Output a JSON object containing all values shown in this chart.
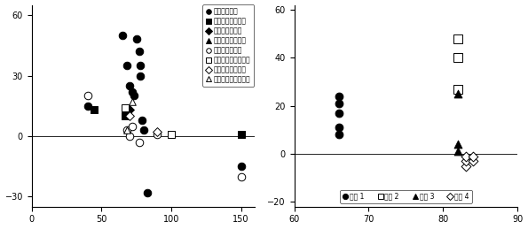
{
  "left_plot": {
    "xlim": [
      0,
      160
    ],
    "ylim": [
      -35,
      65
    ],
    "xticks": [
      0,
      50,
      100,
      150
    ],
    "yticks": [
      -30,
      0,
      30,
      60
    ],
    "series": [
      {
        "key": "kuroboku_hata",
        "label": "黒ボク土・畑",
        "marker": "o",
        "fc": "black",
        "ec": "black",
        "size": 38,
        "points": [
          [
            40,
            15
          ],
          [
            65,
            50
          ],
          [
            68,
            35
          ],
          [
            70,
            25
          ],
          [
            72,
            22
          ],
          [
            73,
            20
          ],
          [
            75,
            48
          ],
          [
            77,
            42
          ],
          [
            78,
            35
          ],
          [
            78,
            30
          ],
          [
            79,
            8
          ],
          [
            80,
            3
          ],
          [
            83,
            -28
          ],
          [
            150,
            -15
          ]
        ]
      },
      {
        "key": "kuroboku_juen",
        "label": "黒ボク土・樹園地",
        "marker": "s",
        "fc": "black",
        "ec": "black",
        "size": 35,
        "points": [
          [
            45,
            13
          ],
          [
            67,
            10
          ],
          [
            150,
            1
          ]
        ]
      },
      {
        "key": "kuroboku_chaen",
        "label": "黒ボク土・茶園",
        "marker": "D",
        "fc": "black",
        "ec": "black",
        "size": 25,
        "points": [
          [
            70,
            13
          ]
        ]
      },
      {
        "key": "kuroboku_bokusochi",
        "label": "黒ボク土・採草地",
        "marker": "^",
        "fc": "black",
        "ec": "black",
        "size": 30,
        "points": []
      },
      {
        "key": "hikuroboku_hata",
        "label": "非黒ボク土・畑",
        "marker": "o",
        "fc": "white",
        "ec": "black",
        "size": 38,
        "points": [
          [
            40,
            20
          ],
          [
            68,
            3
          ],
          [
            70,
            0
          ],
          [
            72,
            5
          ],
          [
            77,
            -3
          ],
          [
            90,
            1
          ],
          [
            150,
            -20
          ]
        ]
      },
      {
        "key": "hikuroboku_juen",
        "label": "非黒ボク土・樹園地",
        "marker": "s",
        "fc": "white",
        "ec": "black",
        "size": 35,
        "points": [
          [
            67,
            14
          ],
          [
            100,
            1
          ]
        ]
      },
      {
        "key": "hikuroboku_chaen",
        "label": "非黒ボク土・茶園",
        "marker": "D",
        "fc": "white",
        "ec": "black",
        "size": 25,
        "points": [
          [
            70,
            10
          ],
          [
            90,
            2
          ]
        ]
      },
      {
        "key": "hikuroboku_bokusochi",
        "label": "非黒ボク土・採草地",
        "marker": "^",
        "fc": "white",
        "ec": "black",
        "size": 30,
        "points": [
          [
            68,
            3
          ],
          [
            72,
            17
          ]
        ]
      }
    ]
  },
  "right_plot": {
    "xlim": [
      60,
      90
    ],
    "ylim": [
      -22,
      62
    ],
    "xticks": [
      60,
      70,
      80,
      90
    ],
    "yticks": [
      -20,
      0,
      20,
      40,
      60
    ],
    "series": [
      {
        "key": "field1",
        "label": "圈場 1",
        "marker": "o",
        "fc": "black",
        "ec": "black",
        "size": 40,
        "points": [
          [
            66,
            8
          ],
          [
            66,
            11
          ],
          [
            66,
            17
          ],
          [
            66,
            21
          ],
          [
            66,
            24
          ]
        ]
      },
      {
        "key": "field2",
        "label": "圈場 2",
        "marker": "s",
        "fc": "white",
        "ec": "black",
        "size": 45,
        "points": [
          [
            82,
            27
          ],
          [
            82,
            40
          ],
          [
            82,
            48
          ]
        ]
      },
      {
        "key": "field3",
        "label": "圈場 3",
        "marker": "^",
        "fc": "black",
        "ec": "black",
        "size": 40,
        "points": [
          [
            82,
            1
          ],
          [
            82,
            4
          ],
          [
            82,
            25
          ]
        ]
      },
      {
        "key": "field4",
        "label": "圈場 4",
        "marker": "D",
        "fc": "white",
        "ec": "black",
        "size": 30,
        "points": [
          [
            83,
            -5
          ],
          [
            83,
            -3
          ],
          [
            83,
            -1
          ],
          [
            84,
            -3
          ],
          [
            84,
            -1
          ]
        ]
      }
    ]
  }
}
